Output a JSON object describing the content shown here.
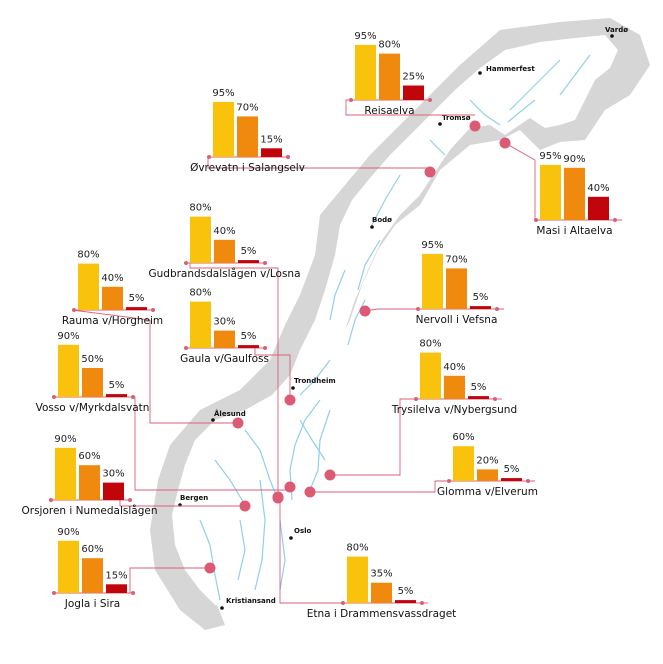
{
  "colors": {
    "bar1": "#f9c20d",
    "bar2": "#f08a0e",
    "bar3": "#c0060b",
    "connector": "#d96078",
    "site_marker": "#dd5a74",
    "halo": "#d6d6d6",
    "land": "#ffffff",
    "river": "#8fd0ec"
  },
  "cities": [
    "Vardø",
    "Hammerfest",
    "Tromsø",
    "Bodø",
    "Trondheim",
    "Ålesund",
    "Bergen",
    "Oslo",
    "Kristiansand"
  ],
  "chart_data": {
    "type": "bar",
    "y_unit": "%",
    "ylim": [
      0,
      100
    ],
    "grid": false,
    "legend": "none",
    "sites": [
      {
        "name": "Reisaelva",
        "values": [
          95,
          80,
          25
        ],
        "labels": [
          "95%",
          "80%",
          "25%"
        ]
      },
      {
        "name": "Øvrevatn i Salangselv",
        "values": [
          95,
          70,
          15
        ],
        "labels": [
          "95%",
          "70%",
          "15%"
        ]
      },
      {
        "name": "Masi i Altaelva",
        "values": [
          95,
          90,
          40
        ],
        "labels": [
          "95%",
          "90%",
          "40%"
        ]
      },
      {
        "name": "Gudbrandsdalslågen v/Losna",
        "values": [
          80,
          40,
          5
        ],
        "labels": [
          "80%",
          "40%",
          "5%"
        ]
      },
      {
        "name": "Rauma v/Horgheim",
        "values": [
          80,
          40,
          5
        ],
        "labels": [
          "80%",
          "40%",
          "5%"
        ]
      },
      {
        "name": "Nervoll i Vefsna",
        "values": [
          95,
          70,
          5
        ],
        "labels": [
          "95%",
          "70%",
          "5%"
        ]
      },
      {
        "name": "Gaula v/Gaulfoss",
        "values": [
          80,
          30,
          5
        ],
        "labels": [
          "80%",
          "30%",
          "5%"
        ]
      },
      {
        "name": "Vosso v/Myrkdalsvatn",
        "values": [
          90,
          50,
          5
        ],
        "labels": [
          "90%",
          "50%",
          "5%"
        ]
      },
      {
        "name": "Trysilelva v/Nybergsund",
        "values": [
          80,
          40,
          5
        ],
        "labels": [
          "80%",
          "40%",
          "5%"
        ]
      },
      {
        "name": "Orsjoren i Numedalslågen",
        "values": [
          90,
          60,
          30
        ],
        "labels": [
          "90%",
          "60%",
          "30%"
        ]
      },
      {
        "name": "Glomma v/Elverum",
        "values": [
          60,
          20,
          5
        ],
        "labels": [
          "60%",
          "20%",
          "5%"
        ]
      },
      {
        "name": "Jogla i Sira",
        "values": [
          90,
          60,
          15
        ],
        "labels": [
          "90%",
          "60%",
          "15%"
        ]
      },
      {
        "name": "Etna i Drammensvassdraget",
        "values": [
          80,
          35,
          5
        ],
        "labels": [
          "80%",
          "35%",
          "5%"
        ]
      }
    ]
  }
}
